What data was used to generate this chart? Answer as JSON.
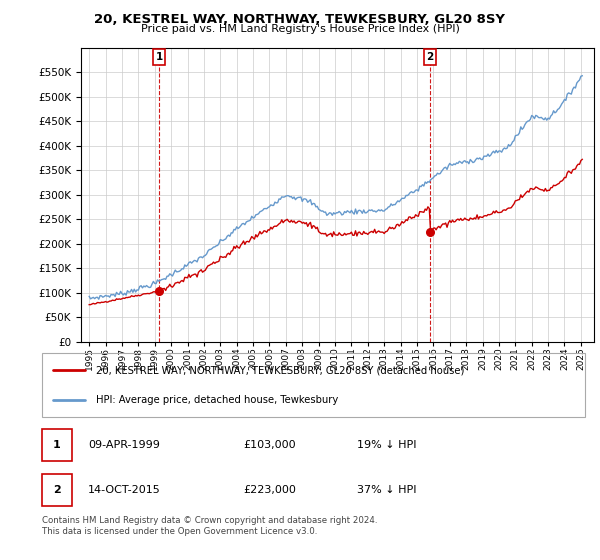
{
  "title": "20, KESTREL WAY, NORTHWAY, TEWKESBURY, GL20 8SY",
  "subtitle": "Price paid vs. HM Land Registry's House Price Index (HPI)",
  "sale1_date": "09-APR-1999",
  "sale1_price": 103000,
  "sale1_year": 1999.27,
  "sale2_date": "14-OCT-2015",
  "sale2_price": 223000,
  "sale2_year": 2015.79,
  "sale1_hpi": "19% ↓ HPI",
  "sale2_hpi": "37% ↓ HPI",
  "legend1": "20, KESTREL WAY, NORTHWAY, TEWKESBURY, GL20 8SY (detached house)",
  "legend2": "HPI: Average price, detached house, Tewkesbury",
  "footer": "Contains HM Land Registry data © Crown copyright and database right 2024.\nThis data is licensed under the Open Government Licence v3.0.",
  "price_color": "#cc0000",
  "hpi_color": "#6699cc",
  "marker_color": "#cc0000",
  "marker_box_color": "#cc0000",
  "ylim_min": 0,
  "ylim_max": 600000,
  "ytick_max": 550000,
  "ytick_step": 50000,
  "xmin": 1994.5,
  "xmax": 2025.8,
  "background_color": "#ffffff",
  "grid_color": "#cccccc"
}
